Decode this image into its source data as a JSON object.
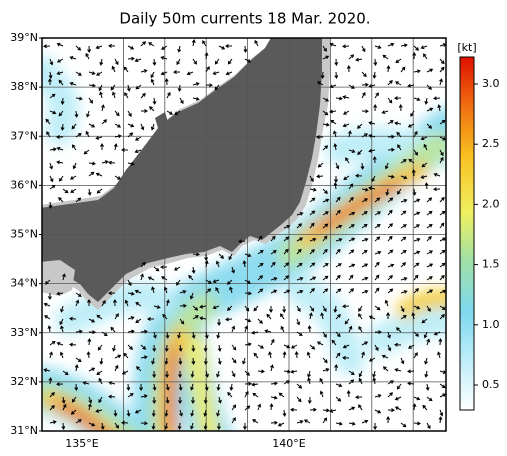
{
  "title": "Daily 50m currents 18 Mar. 2020.",
  "lat_labels": [
    "39°N",
    "38°N",
    "37°N",
    "36°N",
    "35°N",
    "34°N",
    "33°N",
    "32°N",
    "31°N"
  ],
  "lon_labels": [
    "135°E",
    "140°E"
  ],
  "colorbar": {
    "unit": "[kt]",
    "ticks": [
      "3.0",
      "2.5",
      "2.0",
      "1.5",
      "1.0",
      "0.5"
    ]
  }
}
